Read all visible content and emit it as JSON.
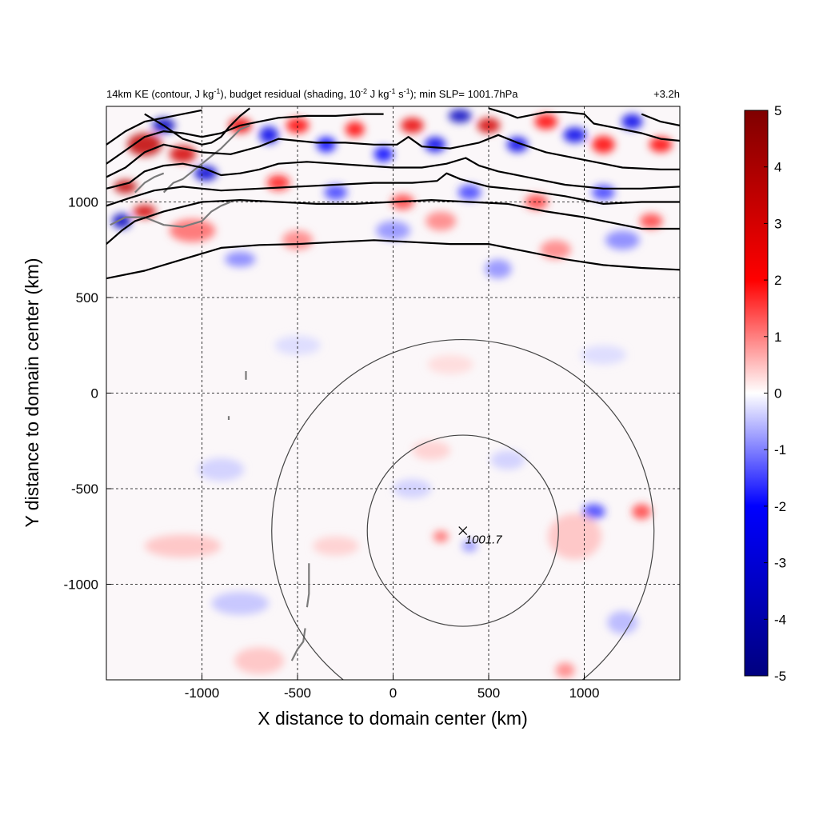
{
  "chart_data": {
    "type": "contour",
    "title": {
      "main_prefix": "14km KE (contour, J kg",
      "main_sup1": "-1",
      "main_mid1": "), budget residual (shading, 10",
      "main_sup2": "-2",
      "main_mid2": " J kg",
      "main_sup3": "-1",
      "main_mid3": " s",
      "main_sup4": "-1",
      "main_suffix": "); min SLP= 1001.7hPa",
      "right": "+3.2h"
    },
    "xlabel": "X distance to domain center (km)",
    "ylabel": "Y distance to domain center (km)",
    "xlim": [
      -1500,
      1500
    ],
    "ylim": [
      -1500,
      1500
    ],
    "xticks": [
      -1000,
      -500,
      0,
      500,
      1000
    ],
    "yticks": [
      -1000,
      -500,
      0,
      500,
      1000
    ],
    "grid": true,
    "colorbar": {
      "range": [
        -5,
        5
      ],
      "ticks": [
        5,
        4,
        3,
        2,
        1,
        0,
        -1,
        -2,
        -3,
        -4,
        -5
      ],
      "colors": {
        "min": "#00007f",
        "neg": "#0000ff",
        "zero": "#ffffff",
        "pos": "#ff0000",
        "max": "#7f0000"
      }
    },
    "storm_center": {
      "x": 365,
      "y": -720,
      "label": "1001.7"
    },
    "range_rings_km": [
      500,
      1000
    ],
    "ke_contours": [
      [
        [
          -1500,
          600
        ],
        [
          -1300,
          640
        ],
        [
          -1100,
          700
        ],
        [
          -900,
          760
        ],
        [
          -700,
          775
        ],
        [
          -500,
          780
        ],
        [
          -300,
          790
        ],
        [
          -100,
          800
        ],
        [
          100,
          790
        ],
        [
          300,
          780
        ],
        [
          500,
          780
        ],
        [
          700,
          740
        ],
        [
          900,
          700
        ],
        [
          1100,
          670
        ],
        [
          1300,
          655
        ],
        [
          1500,
          645
        ]
      ],
      [
        [
          -1500,
          780
        ],
        [
          -1420,
          850
        ],
        [
          -1350,
          900
        ],
        [
          -1200,
          950
        ],
        [
          -1000,
          1000
        ],
        [
          -800,
          1010
        ],
        [
          -600,
          1000
        ],
        [
          -400,
          990
        ],
        [
          -200,
          990
        ],
        [
          0,
          1000
        ],
        [
          200,
          1010
        ],
        [
          400,
          1000
        ],
        [
          600,
          990
        ],
        [
          800,
          950
        ],
        [
          1000,
          920
        ],
        [
          1200,
          880
        ],
        [
          1300,
          860
        ],
        [
          1500,
          860
        ]
      ],
      [
        [
          -1500,
          980
        ],
        [
          -1380,
          1020
        ],
        [
          -1250,
          1060
        ],
        [
          -1100,
          1080
        ],
        [
          -900,
          1060
        ],
        [
          -700,
          1070
        ],
        [
          -500,
          1080
        ],
        [
          -300,
          1090
        ],
        [
          -100,
          1100
        ],
        [
          100,
          1100
        ],
        [
          230,
          1110
        ],
        [
          280,
          1150
        ],
        [
          350,
          1120
        ],
        [
          500,
          1080
        ],
        [
          700,
          1060
        ],
        [
          900,
          1030
        ],
        [
          1100,
          990
        ],
        [
          1300,
          1000
        ],
        [
          1500,
          1000
        ]
      ],
      [
        [
          -1500,
          1070
        ],
        [
          -1380,
          1100
        ],
        [
          -1300,
          1160
        ],
        [
          -1200,
          1190
        ],
        [
          -1100,
          1200
        ],
        [
          -1000,
          1180
        ],
        [
          -900,
          1140
        ],
        [
          -800,
          1150
        ],
        [
          -700,
          1170
        ],
        [
          -600,
          1200
        ],
        [
          -450,
          1210
        ],
        [
          -300,
          1200
        ],
        [
          -150,
          1190
        ],
        [
          0,
          1180
        ],
        [
          150,
          1180
        ],
        [
          280,
          1200
        ],
        [
          380,
          1230
        ],
        [
          450,
          1190
        ],
        [
          550,
          1160
        ],
        [
          700,
          1130
        ],
        [
          900,
          1090
        ],
        [
          1100,
          1070
        ],
        [
          1300,
          1070
        ],
        [
          1500,
          1080
        ]
      ],
      [
        [
          -1500,
          1130
        ],
        [
          -1400,
          1180
        ],
        [
          -1300,
          1260
        ],
        [
          -1200,
          1300
        ],
        [
          -1100,
          1280
        ],
        [
          -1000,
          1260
        ],
        [
          -850,
          1250
        ],
        [
          -700,
          1290
        ],
        [
          -600,
          1330
        ],
        [
          -500,
          1320
        ],
        [
          -400,
          1310
        ],
        [
          -250,
          1310
        ],
        [
          -100,
          1300
        ],
        [
          20,
          1300
        ],
        [
          80,
          1340
        ],
        [
          150,
          1290
        ],
        [
          300,
          1280
        ],
        [
          450,
          1310
        ],
        [
          550,
          1350
        ],
        [
          650,
          1310
        ],
        [
          800,
          1260
        ],
        [
          1000,
          1220
        ],
        [
          1200,
          1180
        ],
        [
          1400,
          1170
        ],
        [
          1500,
          1170
        ]
      ],
      [
        [
          -1500,
          1200
        ],
        [
          -1400,
          1270
        ],
        [
          -1300,
          1340
        ],
        [
          -1200,
          1370
        ],
        [
          -1100,
          1360
        ],
        [
          -1000,
          1340
        ],
        [
          -900,
          1360
        ],
        [
          -800,
          1400
        ],
        [
          -700,
          1420
        ],
        [
          -600,
          1440
        ],
        [
          -450,
          1450
        ],
        [
          -300,
          1450
        ],
        [
          -150,
          1460
        ],
        [
          -50,
          1460
        ]
      ],
      [
        [
          -1500,
          1300
        ],
        [
          -1400,
          1370
        ],
        [
          -1300,
          1420
        ],
        [
          -1200,
          1440
        ],
        [
          -1100,
          1460
        ],
        [
          -1000,
          1480
        ]
      ],
      [
        [
          500,
          1490
        ],
        [
          600,
          1460
        ],
        [
          650,
          1440
        ],
        [
          700,
          1450
        ],
        [
          800,
          1470
        ],
        [
          900,
          1470
        ],
        [
          1000,
          1460
        ],
        [
          1050,
          1410
        ],
        [
          1150,
          1390
        ],
        [
          1300,
          1360
        ],
        [
          1400,
          1330
        ],
        [
          1500,
          1320
        ]
      ],
      [
        [
          -750,
          1490
        ],
        [
          -800,
          1450
        ],
        [
          -860,
          1390
        ],
        [
          -900,
          1340
        ],
        [
          -950,
          1310
        ],
        [
          -1000,
          1300
        ],
        [
          -1100,
          1330
        ],
        [
          -1200,
          1400
        ],
        [
          -1300,
          1460
        ]
      ],
      [
        [
          1300,
          1460
        ],
        [
          1400,
          1420
        ],
        [
          1500,
          1400
        ]
      ]
    ],
    "coastlines": [
      [
        [
          -1480,
          880
        ],
        [
          -1400,
          920
        ],
        [
          -1300,
          920
        ],
        [
          -1200,
          880
        ],
        [
          -1100,
          870
        ],
        [
          -1000,
          900
        ],
        [
          -950,
          950
        ],
        [
          -900,
          980
        ],
        [
          -850,
          1000
        ]
      ],
      [
        [
          -1200,
          1050
        ],
        [
          -1150,
          1100
        ],
        [
          -1100,
          1120
        ],
        [
          -1050,
          1160
        ],
        [
          -1000,
          1200
        ],
        [
          -950,
          1240
        ],
        [
          -900,
          1280
        ],
        [
          -850,
          1330
        ],
        [
          -800,
          1380
        ],
        [
          -750,
          1400
        ]
      ],
      [
        [
          -1350,
          1050
        ],
        [
          -1300,
          1100
        ],
        [
          -1250,
          1130
        ],
        [
          -1200,
          1150
        ]
      ],
      [
        [
          -770,
          115
        ],
        [
          -770,
          70
        ]
      ],
      [
        [
          -860,
          -120
        ],
        [
          -860,
          -140
        ]
      ],
      [
        [
          -440,
          -890
        ],
        [
          -440,
          -960
        ],
        [
          -440,
          -1050
        ],
        [
          -450,
          -1120
        ]
      ],
      [
        [
          -460,
          -1230
        ],
        [
          -470,
          -1300
        ],
        [
          -500,
          -1340
        ],
        [
          -530,
          -1400
        ]
      ]
    ],
    "shading_blobs": [
      {
        "x": -1300,
        "y": 1300,
        "rx": 90,
        "ry": 60,
        "v": 3.5
      },
      {
        "x": -1200,
        "y": 1400,
        "rx": 60,
        "ry": 40,
        "v": -3.5
      },
      {
        "x": -1100,
        "y": 1250,
        "rx": 70,
        "ry": 45,
        "v": 3.0
      },
      {
        "x": -980,
        "y": 1150,
        "rx": 60,
        "ry": 40,
        "v": -3.0
      },
      {
        "x": -1400,
        "y": 1080,
        "rx": 60,
        "ry": 35,
        "v": 3.5
      },
      {
        "x": -1420,
        "y": 900,
        "rx": 50,
        "ry": 40,
        "v": -3.5
      },
      {
        "x": -1300,
        "y": 950,
        "rx": 60,
        "ry": 35,
        "v": 3.0
      },
      {
        "x": -800,
        "y": 1400,
        "rx": 60,
        "ry": 40,
        "v": 2.5
      },
      {
        "x": -650,
        "y": 1350,
        "rx": 50,
        "ry": 45,
        "v": -2.5
      },
      {
        "x": -500,
        "y": 1400,
        "rx": 60,
        "ry": 40,
        "v": 2.0
      },
      {
        "x": -350,
        "y": 1300,
        "rx": 50,
        "ry": 40,
        "v": -2.0
      },
      {
        "x": -200,
        "y": 1380,
        "rx": 50,
        "ry": 40,
        "v": 2.0
      },
      {
        "x": -50,
        "y": 1250,
        "rx": 50,
        "ry": 40,
        "v": -2.0
      },
      {
        "x": 100,
        "y": 1400,
        "rx": 60,
        "ry": 40,
        "v": 2.5
      },
      {
        "x": 220,
        "y": 1300,
        "rx": 55,
        "ry": 40,
        "v": -2.5
      },
      {
        "x": 350,
        "y": 1450,
        "rx": 60,
        "ry": 35,
        "v": -3.5
      },
      {
        "x": 500,
        "y": 1400,
        "rx": 60,
        "ry": 40,
        "v": 3.0
      },
      {
        "x": 650,
        "y": 1300,
        "rx": 55,
        "ry": 40,
        "v": -2.5
      },
      {
        "x": 800,
        "y": 1420,
        "rx": 60,
        "ry": 40,
        "v": 2.0
      },
      {
        "x": 950,
        "y": 1350,
        "rx": 60,
        "ry": 40,
        "v": -2.5
      },
      {
        "x": 1100,
        "y": 1300,
        "rx": 60,
        "ry": 45,
        "v": 2.0
      },
      {
        "x": 1250,
        "y": 1420,
        "rx": 55,
        "ry": 40,
        "v": -2.5
      },
      {
        "x": 1400,
        "y": 1300,
        "rx": 60,
        "ry": 40,
        "v": 2.0
      },
      {
        "x": -600,
        "y": 1100,
        "rx": 60,
        "ry": 40,
        "v": 1.8
      },
      {
        "x": -300,
        "y": 1050,
        "rx": 60,
        "ry": 40,
        "v": -1.5
      },
      {
        "x": 50,
        "y": 1000,
        "rx": 60,
        "ry": 40,
        "v": 1.5
      },
      {
        "x": 400,
        "y": 1050,
        "rx": 60,
        "ry": 40,
        "v": -1.5
      },
      {
        "x": 750,
        "y": 1000,
        "rx": 60,
        "ry": 40,
        "v": 1.5
      },
      {
        "x": 1100,
        "y": 1050,
        "rx": 60,
        "ry": 40,
        "v": -1.5
      },
      {
        "x": 1350,
        "y": 900,
        "rx": 60,
        "ry": 40,
        "v": 1.5
      },
      {
        "x": -1050,
        "y": 850,
        "rx": 120,
        "ry": 60,
        "v": 1.2
      },
      {
        "x": -800,
        "y": 700,
        "rx": 80,
        "ry": 40,
        "v": -1.0
      },
      {
        "x": -500,
        "y": 800,
        "rx": 80,
        "ry": 50,
        "v": 1.0
      },
      {
        "x": 0,
        "y": 850,
        "rx": 90,
        "ry": 50,
        "v": -0.9
      },
      {
        "x": 250,
        "y": 900,
        "rx": 80,
        "ry": 50,
        "v": 1.0
      },
      {
        "x": 550,
        "y": 650,
        "rx": 70,
        "ry": 50,
        "v": -0.9
      },
      {
        "x": 850,
        "y": 750,
        "rx": 80,
        "ry": 50,
        "v": 1.0
      },
      {
        "x": 1200,
        "y": 800,
        "rx": 90,
        "ry": 50,
        "v": -1.0
      },
      {
        "x": -1100,
        "y": -800,
        "rx": 200,
        "ry": 60,
        "v": 0.5
      },
      {
        "x": -800,
        "y": -1100,
        "rx": 150,
        "ry": 60,
        "v": -0.5
      },
      {
        "x": -700,
        "y": -1400,
        "rx": 130,
        "ry": 70,
        "v": 0.5
      },
      {
        "x": -900,
        "y": -400,
        "rx": 120,
        "ry": 60,
        "v": -0.4
      },
      {
        "x": -300,
        "y": -800,
        "rx": 120,
        "ry": 50,
        "v": 0.4
      },
      {
        "x": 100,
        "y": -500,
        "rx": 100,
        "ry": 50,
        "v": -0.4
      },
      {
        "x": 200,
        "y": -300,
        "rx": 100,
        "ry": 50,
        "v": 0.4
      },
      {
        "x": 250,
        "y": -750,
        "rx": 40,
        "ry": 30,
        "v": 1.2
      },
      {
        "x": 400,
        "y": -800,
        "rx": 40,
        "ry": 30,
        "v": -0.9
      },
      {
        "x": 1050,
        "y": -620,
        "rx": 60,
        "ry": 40,
        "v": -1.5
      },
      {
        "x": 1300,
        "y": -620,
        "rx": 50,
        "ry": 40,
        "v": 1.5
      },
      {
        "x": 950,
        "y": -750,
        "rx": 140,
        "ry": 120,
        "v": 0.5
      },
      {
        "x": 1200,
        "y": -1200,
        "rx": 80,
        "ry": 60,
        "v": -0.6
      },
      {
        "x": 900,
        "y": -1450,
        "rx": 50,
        "ry": 40,
        "v": 1.0
      },
      {
        "x": 600,
        "y": -350,
        "rx": 90,
        "ry": 50,
        "v": -0.4
      },
      {
        "x": -500,
        "y": 250,
        "rx": 120,
        "ry": 50,
        "v": -0.3
      },
      {
        "x": 300,
        "y": 150,
        "rx": 120,
        "ry": 50,
        "v": 0.3
      },
      {
        "x": 1100,
        "y": 200,
        "rx": 120,
        "ry": 50,
        "v": -0.3
      }
    ]
  }
}
